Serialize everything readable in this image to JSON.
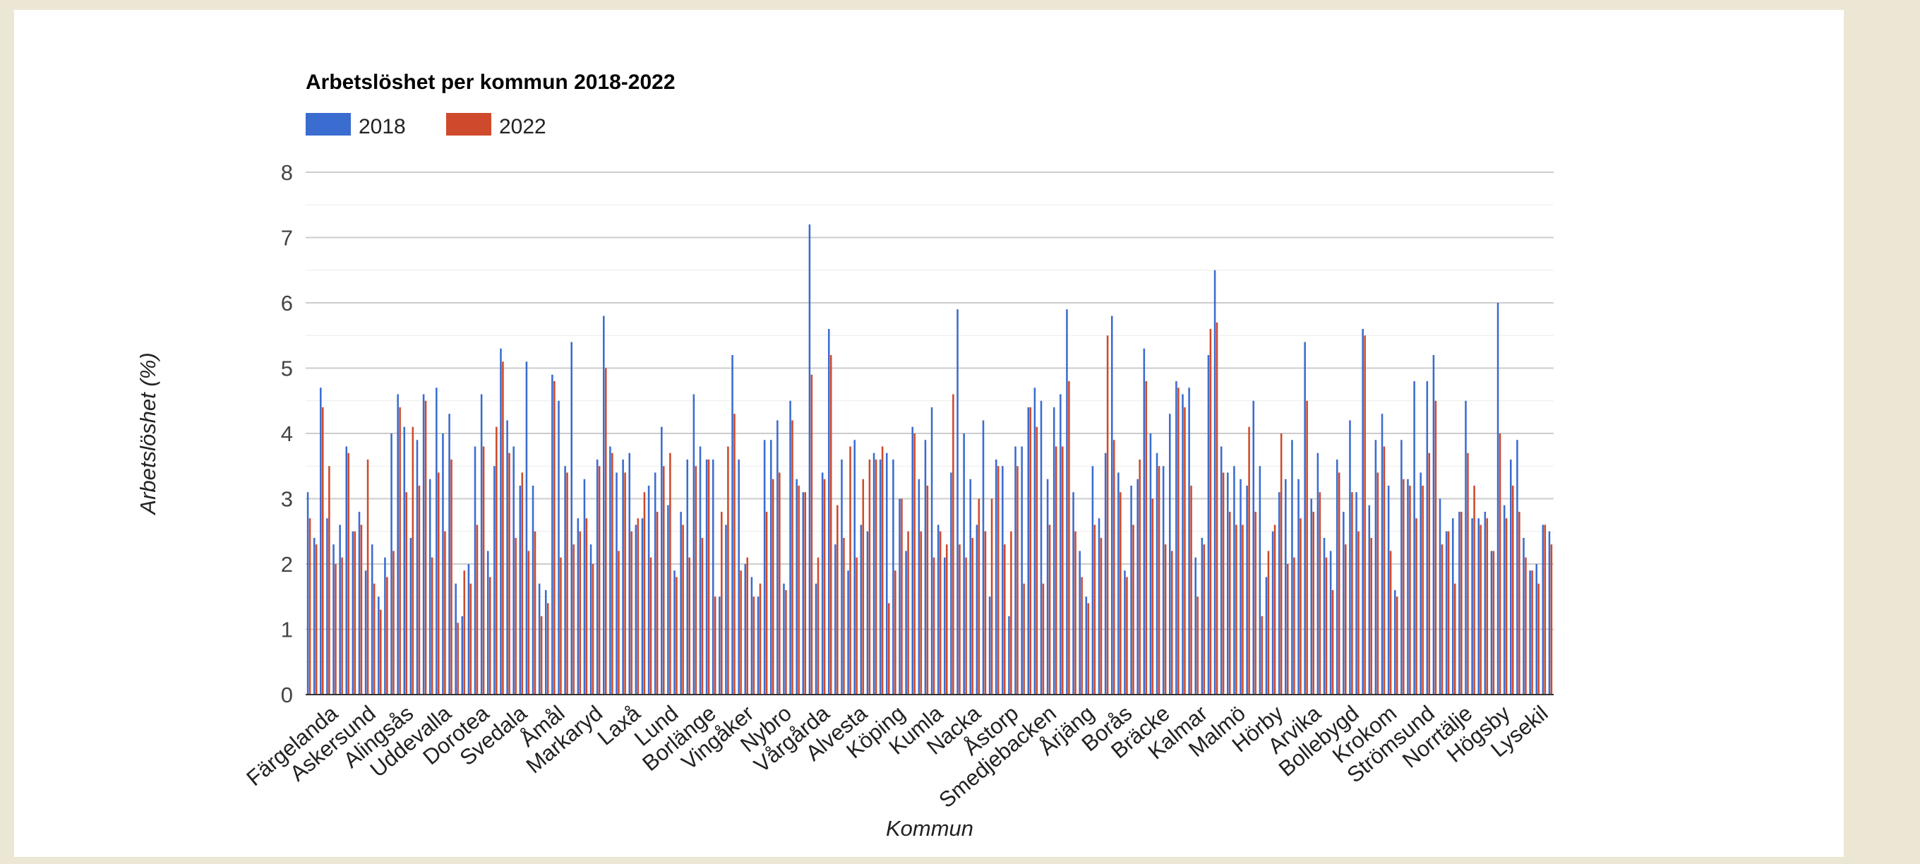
{
  "chart_data": {
    "type": "bar",
    "title": "Arbetslöshet per kommun 2018-2022",
    "xlabel": "Kommun",
    "ylabel": "Arbetslöshet (%)",
    "ylim": [
      0,
      8
    ],
    "yticks": [
      "0",
      "1",
      "2",
      "3",
      "4",
      "5",
      "6",
      "7",
      "8"
    ],
    "grid": true,
    "legend_position": "top-left",
    "colors": {
      "2018": "#3b6ccf",
      "2022": "#cf4a2c",
      "grid": "#cccccc",
      "axis": "#333333"
    },
    "categories_labeled": [
      "Färgelanda",
      "Askersund",
      "Alingsås",
      "Uddevalla",
      "Dorotea",
      "Svedala",
      "Åmål",
      "Markaryd",
      "Laxå",
      "Lund",
      "Borlänge",
      "Vingåker",
      "Nybro",
      "Vårgårda",
      "Alvesta",
      "Köping",
      "Kumla",
      "Nacka",
      "Åstorp",
      "Smedjebacken",
      "Årjäng",
      "Borås",
      "Bräcke",
      "Kalmar",
      "Malmö",
      "Hörby",
      "Arvika",
      "Bollebygd",
      "Krokom",
      "Strömsund",
      "Norrtälje",
      "Högsby",
      "Lysekil"
    ],
    "series": [
      {
        "name": "2018",
        "values": [
          3.1,
          2.4,
          4.7,
          2.7,
          2.3,
          2.6,
          3.8,
          2.5,
          2.8,
          1.9,
          2.3,
          1.5,
          2.1,
          4.0,
          4.6,
          4.1,
          2.4,
          3.9,
          4.6,
          3.3,
          4.7,
          4.0,
          4.3,
          1.7,
          1.2,
          2.0,
          3.8,
          4.6,
          2.2,
          3.5,
          5.3,
          4.2,
          3.8,
          3.2,
          5.1,
          3.2,
          1.7,
          1.6,
          4.9,
          4.5,
          3.5,
          5.4,
          2.7,
          3.3,
          2.3,
          3.6,
          5.8,
          3.8,
          3.4,
          3.6,
          3.7,
          2.6,
          2.7,
          3.2,
          3.4,
          4.1,
          2.9,
          1.9,
          2.8,
          3.6,
          4.6,
          3.8,
          3.6,
          3.6,
          1.5,
          2.6,
          5.2,
          3.6,
          2.0,
          1.8,
          1.5,
          3.9,
          3.9,
          4.2,
          1.7,
          4.5,
          3.3,
          3.1,
          7.2,
          1.7,
          3.4,
          5.6,
          2.3,
          3.6,
          1.9,
          3.9,
          2.6,
          2.5,
          3.7,
          3.6,
          3.7,
          3.6,
          3.0,
          2.2,
          4.1,
          3.3,
          3.9,
          4.4,
          2.6,
          2.1,
          3.4,
          5.9,
          4.0,
          3.3,
          2.6,
          4.2,
          1.5,
          3.6,
          3.5,
          1.2,
          3.8,
          3.8,
          4.4,
          4.7,
          4.5,
          3.3,
          4.4,
          4.6,
          5.9,
          3.1,
          2.2,
          1.5,
          3.5,
          2.7,
          3.7,
          5.8,
          3.4,
          1.9,
          3.2,
          3.3,
          5.3,
          4.0,
          3.7,
          3.5,
          4.3,
          4.8,
          4.6,
          4.7,
          2.1,
          2.4,
          5.2,
          6.5,
          3.8,
          3.4,
          3.5,
          3.3,
          3.2,
          4.5,
          3.5,
          1.8,
          2.5,
          3.1,
          3.3,
          3.9,
          3.3,
          5.4,
          3.0,
          3.7,
          2.4,
          2.2,
          3.6,
          2.8,
          4.2,
          3.1,
          5.6,
          2.9,
          3.9,
          4.3,
          3.2,
          1.6,
          3.9,
          3.3,
          4.8,
          3.4,
          4.8,
          5.2,
          3.0,
          2.5,
          2.7,
          2.8,
          4.5,
          2.7,
          2.7,
          2.8,
          2.2,
          6.0,
          2.9,
          3.6,
          3.9,
          2.4,
          1.9,
          2.0,
          2.6,
          2.5
        ]
      },
      {
        "name": "2022",
        "values": [
          2.7,
          2.3,
          4.4,
          3.5,
          2.0,
          2.1,
          3.7,
          2.5,
          2.6,
          3.6,
          1.7,
          1.3,
          1.8,
          2.2,
          4.4,
          3.1,
          4.1,
          3.2,
          4.5,
          2.1,
          3.4,
          2.5,
          3.6,
          1.1,
          1.9,
          1.7,
          2.6,
          3.8,
          1.8,
          4.1,
          5.1,
          3.7,
          2.4,
          3.4,
          2.2,
          2.5,
          1.2,
          1.4,
          4.8,
          2.1,
          3.4,
          2.3,
          2.5,
          2.7,
          2.0,
          3.5,
          5.0,
          3.7,
          2.2,
          3.4,
          2.5,
          2.7,
          3.1,
          2.1,
          2.8,
          3.5,
          3.7,
          1.8,
          2.6,
          2.1,
          3.5,
          2.4,
          3.6,
          1.5,
          2.8,
          3.8,
          4.3,
          1.9,
          2.1,
          1.5,
          1.7,
          2.8,
          3.3,
          3.4,
          1.6,
          4.2,
          3.2,
          3.1,
          4.9,
          2.1,
          3.3,
          5.2,
          2.9,
          2.4,
          3.8,
          2.1,
          3.3,
          3.6,
          3.6,
          3.8,
          1.4,
          1.9,
          3.0,
          2.5,
          4.0,
          2.5,
          3.2,
          2.1,
          2.5,
          2.3,
          4.6,
          2.3,
          2.1,
          2.4,
          3.0,
          2.5,
          3.0,
          3.5,
          2.3,
          2.5,
          3.5,
          1.7,
          4.4,
          4.1,
          1.7,
          2.6,
          3.8,
          3.8,
          4.8,
          2.5,
          1.8,
          1.4,
          2.6,
          2.4,
          5.5,
          3.9,
          3.1,
          1.8,
          2.6,
          3.6,
          4.8,
          3.0,
          3.5,
          2.3,
          2.2,
          4.7,
          4.4,
          3.2,
          1.5,
          2.3,
          5.6,
          5.7,
          3.4,
          2.8,
          2.6,
          2.6,
          4.1,
          2.8,
          1.2,
          2.2,
          2.6,
          4.0,
          2.0,
          2.1,
          2.7,
          4.5,
          2.8,
          3.1,
          2.1,
          1.6,
          3.4,
          2.3,
          3.1,
          2.5,
          5.5,
          2.4,
          3.4,
          3.8,
          2.2,
          1.5,
          3.3,
          3.2,
          2.7,
          3.2,
          3.7,
          4.5,
          2.3,
          2.5,
          1.7,
          2.8,
          3.7,
          3.2,
          2.6,
          2.7,
          2.2,
          4.0,
          2.7,
          3.2,
          2.8,
          2.1,
          1.9,
          1.7,
          2.6,
          2.3
        ]
      }
    ]
  }
}
